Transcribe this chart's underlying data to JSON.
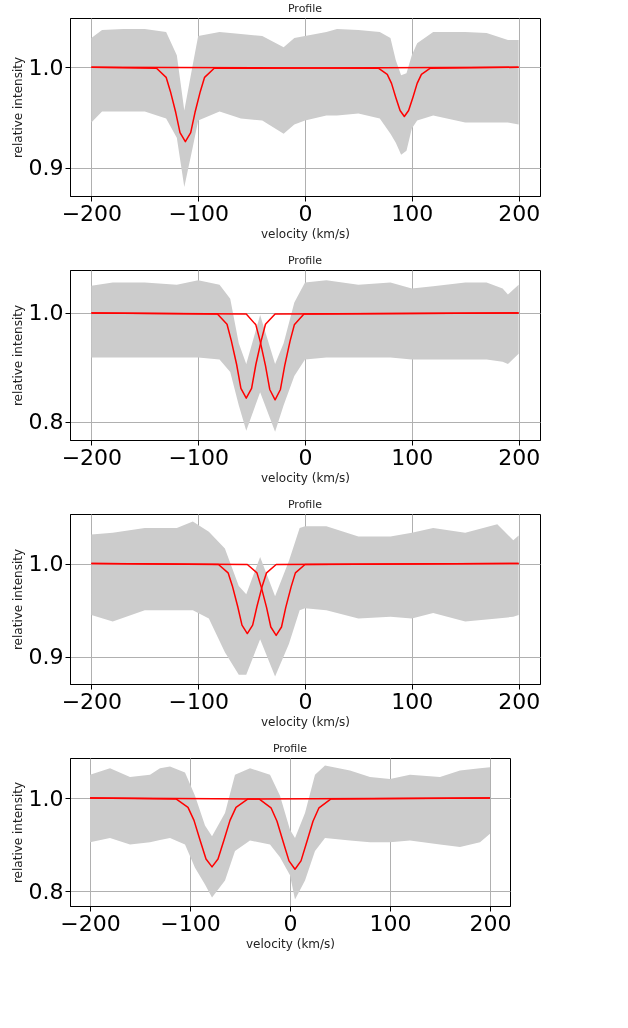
{
  "chart_data": [
    {
      "type": "line",
      "title": "Profile",
      "xlabel": "velocity (km/s)",
      "ylabel": "relative intensity",
      "grid": true,
      "xlim": [
        -220,
        220
      ],
      "ylim": [
        0.872,
        1.049
      ],
      "xticks": [
        -200,
        -100,
        0,
        100,
        200
      ],
      "yticks": [
        {
          "value": 0.9,
          "label": "0.9"
        },
        {
          "value": 1.0,
          "label": "1.0"
        }
      ],
      "series": [
        {
          "type": "area",
          "color": "#cccccc",
          "values": [
            null,
            null,
            null,
            null,
            null,
            null,
            null,
            null,
            null,
            null,
            null,
            null,
            null,
            null,
            null,
            null,
            null,
            null,
            null,
            null,
            null,
            null,
            null,
            null,
            null,
            null,
            null,
            null,
            null,
            null
          ],
          "x": [
            -200,
            -190,
            -170,
            -150,
            -130,
            -120,
            -113,
            -105,
            -100,
            -80,
            -60,
            -40,
            -20,
            -10,
            0,
            20,
            30,
            50,
            70,
            80,
            85,
            90,
            95,
            100,
            105,
            120,
            150,
            170,
            190,
            200
          ],
          "upper": [
            1.029,
            1.037,
            1.038,
            1.038,
            1.035,
            1.012,
            0.957,
            1.003,
            1.031,
            1.035,
            1.033,
            1.031,
            1.02,
            1.029,
            1.031,
            1.035,
            1.038,
            1.037,
            1.035,
            1.029,
            1.007,
            0.992,
            0.994,
            1.012,
            1.024,
            1.035,
            1.035,
            1.034,
            1.027,
            1.027
          ],
          "lower": [
            0.945,
            0.956,
            0.956,
            0.956,
            0.949,
            0.93,
            0.881,
            0.921,
            0.947,
            0.956,
            0.949,
            0.947,
            0.934,
            0.943,
            0.947,
            0.952,
            0.952,
            0.954,
            0.949,
            0.934,
            0.925,
            0.913,
            0.917,
            0.939,
            0.947,
            0.952,
            0.945,
            0.945,
            0.945,
            0.943
          ]
        },
        {
          "color": "#ff0000",
          "x": [
            -200,
            -139,
            -130,
            -126,
            -121,
            -117,
            -112,
            -107,
            -103,
            -98,
            -94,
            -85,
            200
          ],
          "values": [
            1,
            0.999,
            0.99,
            0.976,
            0.955,
            0.935,
            0.926,
            0.935,
            0.955,
            0.976,
            0.99,
            0.999,
            1
          ]
        },
        {
          "color": "#ff0000",
          "x": [
            -200,
            69,
            77,
            81,
            85,
            89,
            93,
            97,
            101,
            105,
            109,
            117,
            200
          ],
          "values": [
            1,
            0.999,
            0.993,
            0.984,
            0.97,
            0.957,
            0.951,
            0.957,
            0.97,
            0.984,
            0.993,
            0.999,
            1
          ]
        }
      ]
    },
    {
      "type": "line",
      "title": "Profile",
      "xlabel": "velocity (km/s)",
      "ylabel": "relative intensity",
      "grid": true,
      "xlim": [
        -220,
        220
      ],
      "ylim": [
        0.766,
        1.079
      ],
      "xticks": [
        -200,
        -100,
        0,
        100,
        200
      ],
      "yticks": [
        {
          "value": 0.8,
          "label": "0.8"
        },
        {
          "value": 1.0,
          "label": "1.0"
        }
      ],
      "series": [
        {
          "type": "area",
          "color": "#cccccc",
          "values": [
            null,
            null,
            null,
            null,
            null,
            null,
            null,
            null,
            null,
            null,
            null,
            null,
            null,
            null,
            null,
            null,
            null,
            null,
            null,
            null,
            null,
            null,
            null,
            null
          ],
          "x": [
            -200,
            -180,
            -150,
            -120,
            -100,
            -80,
            -70,
            -62,
            -55,
            -42,
            -28,
            -20,
            -10,
            0,
            20,
            50,
            80,
            100,
            120,
            150,
            170,
            185,
            190,
            200
          ],
          "upper": [
            1.05,
            1.056,
            1.056,
            1.052,
            1.06,
            1.052,
            1.026,
            0.944,
            0.906,
            0.996,
            0.906,
            0.944,
            1.019,
            1.056,
            1.06,
            1.052,
            1.056,
            1.045,
            1.049,
            1.056,
            1.056,
            1.045,
            1.034,
            1.052
          ],
          "lower": [
            0.918,
            0.918,
            0.918,
            0.918,
            0.918,
            0.914,
            0.891,
            0.83,
            0.783,
            0.854,
            0.781,
            0.83,
            0.884,
            0.914,
            0.918,
            0.918,
            0.918,
            0.914,
            0.914,
            0.914,
            0.914,
            0.91,
            0.906,
            0.925
          ]
        },
        {
          "color": "#ff0000",
          "x": [
            -200,
            -82,
            -73,
            -69,
            -64,
            -60,
            -55,
            -50,
            -46,
            -41,
            -37,
            -28,
            200
          ],
          "values": [
            1,
            0.998,
            0.979,
            0.949,
            0.905,
            0.861,
            0.843,
            0.861,
            0.905,
            0.949,
            0.979,
            0.998,
            1
          ]
        },
        {
          "color": "#ff0000",
          "x": [
            -200,
            -55,
            -46,
            -42,
            -37,
            -33,
            -28,
            -23,
            -19,
            -14,
            -10,
            -1,
            200
          ],
          "values": [
            1,
            0.998,
            0.978,
            0.948,
            0.903,
            0.859,
            0.84,
            0.859,
            0.903,
            0.948,
            0.978,
            0.998,
            1
          ]
        }
      ]
    },
    {
      "type": "line",
      "title": "Profile",
      "xlabel": "velocity (km/s)",
      "ylabel": "relative intensity",
      "grid": true,
      "xlim": [
        -220,
        220
      ],
      "ylim": [
        0.871,
        1.053
      ],
      "xticks": [
        -200,
        -100,
        0,
        100,
        200
      ],
      "yticks": [
        {
          "value": 0.9,
          "label": "0.9"
        },
        {
          "value": 1.0,
          "label": "1.0"
        }
      ],
      "series": [
        {
          "type": "area",
          "color": "#cccccc",
          "values": [
            null,
            null,
            null,
            null,
            null,
            null,
            null,
            null,
            null,
            null,
            null,
            null,
            null,
            null,
            null,
            null,
            null,
            null,
            null,
            null,
            null,
            null,
            null
          ],
          "x": [
            -200,
            -180,
            -150,
            -120,
            -105,
            -90,
            -75,
            -62,
            -55,
            -42,
            -28,
            -15,
            -5,
            0,
            20,
            50,
            80,
            100,
            120,
            150,
            180,
            195,
            200
          ],
          "upper": [
            1.031,
            1.033,
            1.038,
            1.038,
            1.045,
            1.034,
            1.016,
            0.976,
            0.967,
            1.007,
            0.965,
            1.003,
            1.038,
            1.04,
            1.04,
            1.029,
            1.029,
            1.033,
            1.038,
            1.033,
            1.042,
            1.025,
            1.03
          ],
          "lower": [
            0.945,
            0.938,
            0.95,
            0.95,
            0.95,
            0.941,
            0.905,
            0.881,
            0.881,
            0.919,
            0.879,
            0.914,
            0.95,
            0.952,
            0.95,
            0.941,
            0.943,
            0.941,
            0.947,
            0.938,
            0.941,
            0.943,
            0.945
          ]
        },
        {
          "color": "#ff0000",
          "x": [
            -200,
            -81,
            -72,
            -68,
            -63,
            -59,
            -54,
            -49,
            -45,
            -40,
            -36,
            -27,
            200
          ],
          "values": [
            1,
            0.999,
            0.99,
            0.976,
            0.954,
            0.934,
            0.925,
            0.934,
            0.954,
            0.976,
            0.99,
            0.999,
            1
          ]
        },
        {
          "color": "#ff0000",
          "x": [
            -200,
            -54,
            -45,
            -41,
            -36,
            -32,
            -27,
            -22,
            -18,
            -13,
            -9,
            0,
            200
          ],
          "values": [
            1,
            0.999,
            0.99,
            0.975,
            0.953,
            0.932,
            0.923,
            0.932,
            0.953,
            0.975,
            0.99,
            0.999,
            1
          ]
        }
      ]
    },
    {
      "type": "line",
      "title": "Profile",
      "xlabel": "velocity (km/s)",
      "ylabel": "relative intensity",
      "grid": true,
      "xlim": [
        -220,
        220
      ],
      "ylim": [
        0.768,
        1.086
      ],
      "xticks": [
        -200,
        -100,
        0,
        100,
        200
      ],
      "yticks": [
        {
          "value": 0.8,
          "label": "0.8"
        },
        {
          "value": 1.0,
          "label": "1.0"
        }
      ],
      "series": [
        {
          "type": "area",
          "color": "#cccccc",
          "values": [
            null,
            null,
            null,
            null,
            null,
            null,
            null,
            null,
            null,
            null,
            null,
            null,
            null,
            null,
            null,
            null,
            null,
            null,
            null,
            null,
            null,
            null,
            null,
            null,
            null,
            null,
            null,
            null
          ],
          "x": [
            -200,
            -180,
            -160,
            -140,
            -130,
            -120,
            -105,
            -95,
            -85,
            -78,
            -65,
            -55,
            -40,
            -20,
            -10,
            0,
            5,
            15,
            25,
            35,
            60,
            80,
            100,
            120,
            150,
            170,
            190,
            200
          ],
          "upper": [
            1.05,
            1.064,
            1.045,
            1.05,
            1.064,
            1.068,
            1.055,
            1.005,
            0.941,
            0.918,
            0.968,
            1.05,
            1.064,
            1.05,
            1.005,
            0.932,
            0.914,
            0.968,
            1.05,
            1.07,
            1.059,
            1.045,
            1.041,
            1.05,
            1.045,
            1.059,
            1.064,
            1.066
          ],
          "lower": [
            0.905,
            0.914,
            0.9,
            0.905,
            0.91,
            0.914,
            0.9,
            0.85,
            0.814,
            0.786,
            0.823,
            0.886,
            0.909,
            0.9,
            0.873,
            0.834,
            0.782,
            0.823,
            0.886,
            0.914,
            0.909,
            0.905,
            0.905,
            0.909,
            0.9,
            0.895,
            0.905,
            0.923
          ]
        },
        {
          "color": "#ff0000",
          "x": [
            -200,
            -114,
            -102,
            -96,
            -90,
            -84,
            -78,
            -72,
            -66,
            -60,
            -54,
            -42,
            200
          ],
          "values": [
            1,
            0.998,
            0.98,
            0.952,
            0.91,
            0.869,
            0.852,
            0.869,
            0.91,
            0.952,
            0.98,
            0.998,
            1
          ]
        },
        {
          "color": "#ff0000",
          "x": [
            -200,
            -31,
            -19,
            -13,
            -7,
            -1,
            5,
            11,
            17,
            23,
            29,
            41,
            200
          ],
          "values": [
            1,
            0.998,
            0.979,
            0.95,
            0.907,
            0.865,
            0.847,
            0.865,
            0.907,
            0.95,
            0.979,
            0.998,
            1
          ]
        }
      ]
    }
  ]
}
